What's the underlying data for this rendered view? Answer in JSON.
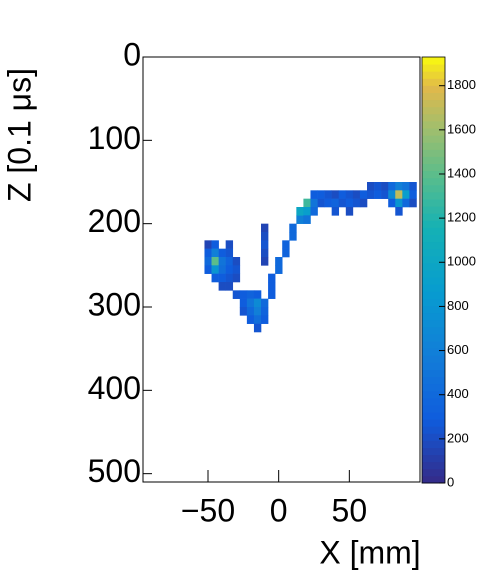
{
  "chart_data": {
    "type": "heatmap",
    "x_label": "X [mm]",
    "y_label": "Z [0.1 μs]",
    "xlim": [
      -96,
      100
    ],
    "ylim": [
      510,
      0
    ],
    "xticks": [
      {
        "value": -50,
        "label": "−50"
      },
      0,
      50
    ],
    "yticks": [
      0,
      100,
      200,
      300,
      400,
      500
    ],
    "zlim": [
      0,
      1930
    ],
    "zticks": [
      0,
      200,
      400,
      600,
      800,
      1000,
      1200,
      1400,
      1600,
      1800
    ],
    "bin_width": 5,
    "bin_height": 10,
    "cells": [
      [
        -50,
        225,
        150
      ],
      [
        -45,
        225,
        300
      ],
      [
        -35,
        225,
        200
      ],
      [
        -50,
        235,
        300
      ],
      [
        -45,
        235,
        600
      ],
      [
        -40,
        235,
        300
      ],
      [
        -35,
        235,
        250
      ],
      [
        -50,
        245,
        400
      ],
      [
        -45,
        245,
        1400
      ],
      [
        -40,
        245,
        500
      ],
      [
        -35,
        245,
        350
      ],
      [
        -30,
        245,
        200
      ],
      [
        -50,
        255,
        300
      ],
      [
        -45,
        255,
        800
      ],
      [
        -40,
        255,
        450
      ],
      [
        -35,
        255,
        300
      ],
      [
        -30,
        255,
        250
      ],
      [
        -45,
        265,
        300
      ],
      [
        -40,
        265,
        300
      ],
      [
        -35,
        265,
        250
      ],
      [
        -30,
        265,
        200
      ],
      [
        -40,
        275,
        200
      ],
      [
        -35,
        275,
        200
      ],
      [
        -30,
        285,
        250
      ],
      [
        -25,
        285,
        300
      ],
      [
        -20,
        285,
        350
      ],
      [
        -15,
        285,
        300
      ],
      [
        -25,
        295,
        300
      ],
      [
        -20,
        295,
        500
      ],
      [
        -15,
        295,
        700
      ],
      [
        -10,
        295,
        400
      ],
      [
        -25,
        305,
        250
      ],
      [
        -20,
        305,
        400
      ],
      [
        -15,
        305,
        600
      ],
      [
        -10,
        305,
        350
      ],
      [
        -20,
        315,
        300
      ],
      [
        -15,
        315,
        450
      ],
      [
        -10,
        315,
        300
      ],
      [
        -15,
        325,
        250
      ],
      [
        -10,
        205,
        150
      ],
      [
        -10,
        215,
        200
      ],
      [
        -10,
        225,
        250
      ],
      [
        -10,
        235,
        200
      ],
      [
        -10,
        245,
        150
      ],
      [
        -5,
        285,
        300
      ],
      [
        -5,
        275,
        300
      ],
      [
        -5,
        265,
        300
      ],
      [
        0,
        255,
        400
      ],
      [
        0,
        245,
        400
      ],
      [
        5,
        235,
        350
      ],
      [
        5,
        225,
        350
      ],
      [
        10,
        215,
        400
      ],
      [
        10,
        205,
        400
      ],
      [
        15,
        195,
        600
      ],
      [
        15,
        185,
        1000
      ],
      [
        20,
        175,
        1300
      ],
      [
        20,
        185,
        900
      ],
      [
        20,
        195,
        500
      ],
      [
        25,
        175,
        500
      ],
      [
        25,
        185,
        400
      ],
      [
        25,
        165,
        300
      ],
      [
        30,
        165,
        300
      ],
      [
        30,
        175,
        250
      ],
      [
        35,
        165,
        250
      ],
      [
        35,
        175,
        300
      ],
      [
        40,
        165,
        200
      ],
      [
        40,
        175,
        350
      ],
      [
        40,
        185,
        250
      ],
      [
        45,
        165,
        300
      ],
      [
        45,
        175,
        250
      ],
      [
        50,
        165,
        250
      ],
      [
        50,
        175,
        300
      ],
      [
        50,
        185,
        200
      ],
      [
        55,
        165,
        200
      ],
      [
        55,
        175,
        250
      ],
      [
        60,
        165,
        300
      ],
      [
        60,
        175,
        200
      ],
      [
        65,
        155,
        200
      ],
      [
        65,
        165,
        250
      ],
      [
        70,
        155,
        250
      ],
      [
        70,
        165,
        300
      ],
      [
        75,
        155,
        200
      ],
      [
        75,
        165,
        250
      ],
      [
        80,
        155,
        400
      ],
      [
        80,
        165,
        700
      ],
      [
        80,
        175,
        300
      ],
      [
        85,
        155,
        600
      ],
      [
        85,
        165,
        1700
      ],
      [
        85,
        175,
        800
      ],
      [
        85,
        185,
        250
      ],
      [
        90,
        155,
        500
      ],
      [
        90,
        165,
        900
      ],
      [
        90,
        175,
        400
      ],
      [
        95,
        155,
        250
      ],
      [
        95,
        165,
        300
      ],
      [
        95,
        175,
        200
      ]
    ]
  }
}
